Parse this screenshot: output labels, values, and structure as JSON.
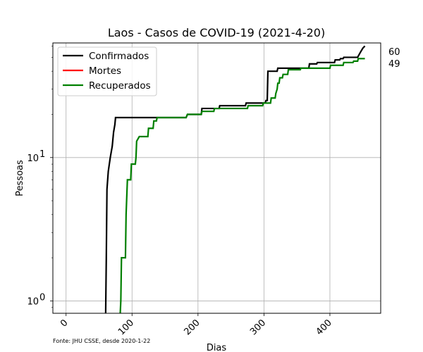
{
  "chart_data": {
    "type": "line",
    "title": "Laos - Casos de COVID-19 (2021-4-20)",
    "xlabel": "Dias",
    "ylabel": "Pessoas",
    "xlim": [
      -20,
      477
    ],
    "ylim": [
      0.82,
      63
    ],
    "yscale": "log",
    "grid": true,
    "legend_position": "top-left",
    "x_ticks": [
      {
        "value": 0,
        "label": "0"
      },
      {
        "value": 100,
        "label": "100"
      },
      {
        "value": 200,
        "label": "200"
      },
      {
        "value": 300,
        "label": "300"
      },
      {
        "value": 400,
        "label": "400"
      }
    ],
    "y_ticks": [
      {
        "value": 1,
        "base": "10",
        "exp": "0"
      },
      {
        "value": 10,
        "base": "10",
        "exp": "1"
      }
    ],
    "series": [
      {
        "name": "Confirmados",
        "color": "#000000",
        "points": [
          [
            60,
            0.8
          ],
          [
            61,
            2
          ],
          [
            62,
            6
          ],
          [
            64,
            8
          ],
          [
            67,
            10
          ],
          [
            70,
            12
          ],
          [
            72,
            15
          ],
          [
            74,
            17
          ],
          [
            75,
            19
          ],
          [
            182,
            19
          ],
          [
            184,
            20
          ],
          [
            205,
            20
          ],
          [
            206,
            22
          ],
          [
            232,
            22
          ],
          [
            233,
            23
          ],
          [
            272,
            23
          ],
          [
            273,
            24
          ],
          [
            302,
            24
          ],
          [
            303,
            25
          ],
          [
            305,
            25
          ],
          [
            306,
            40
          ],
          [
            320,
            40
          ],
          [
            321,
            42
          ],
          [
            368,
            42
          ],
          [
            369,
            45
          ],
          [
            380,
            45
          ],
          [
            381,
            46
          ],
          [
            407,
            46
          ],
          [
            408,
            48
          ],
          [
            415,
            48
          ],
          [
            416,
            49
          ],
          [
            420,
            49
          ],
          [
            421,
            50
          ],
          [
            442,
            50
          ],
          [
            444,
            52
          ],
          [
            447,
            55
          ],
          [
            450,
            58
          ],
          [
            453,
            60
          ]
        ],
        "end_label": "60"
      },
      {
        "name": "Mortes",
        "color": "#ff0000",
        "points": [],
        "end_label": ""
      },
      {
        "name": "Recuperados",
        "color": "#008000",
        "points": [
          [
            82,
            0.8
          ],
          [
            83,
            1
          ],
          [
            84,
            2
          ],
          [
            90,
            2
          ],
          [
            91,
            4
          ],
          [
            93,
            7
          ],
          [
            98,
            7
          ],
          [
            99,
            9
          ],
          [
            105,
            9
          ],
          [
            106,
            10
          ],
          [
            107,
            13
          ],
          [
            111,
            14
          ],
          [
            124,
            14
          ],
          [
            125,
            16
          ],
          [
            132,
            16
          ],
          [
            133,
            18
          ],
          [
            137,
            18
          ],
          [
            138,
            19
          ],
          [
            182,
            19
          ],
          [
            184,
            20
          ],
          [
            205,
            20
          ],
          [
            206,
            21
          ],
          [
            224,
            21
          ],
          [
            225,
            22
          ],
          [
            275,
            22
          ],
          [
            276,
            23
          ],
          [
            298,
            23
          ],
          [
            299,
            24
          ],
          [
            310,
            24
          ],
          [
            311,
            26
          ],
          [
            317,
            26
          ],
          [
            318,
            28
          ],
          [
            320,
            30
          ],
          [
            321,
            33
          ],
          [
            323,
            33
          ],
          [
            324,
            36
          ],
          [
            328,
            36
          ],
          [
            329,
            38
          ],
          [
            336,
            38
          ],
          [
            337,
            41
          ],
          [
            355,
            41
          ],
          [
            356,
            42
          ],
          [
            400,
            42
          ],
          [
            401,
            44
          ],
          [
            420,
            44
          ],
          [
            421,
            46
          ],
          [
            435,
            46
          ],
          [
            436,
            47
          ],
          [
            442,
            47
          ],
          [
            443,
            49
          ],
          [
            453,
            49
          ]
        ],
        "end_label": "49"
      }
    ],
    "source_note": "Fonte: JHU CSSE, desde 2020-1-22"
  }
}
